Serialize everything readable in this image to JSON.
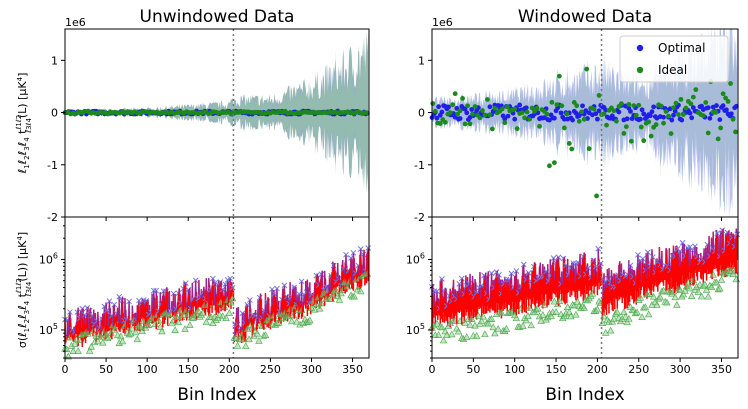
{
  "figure": {
    "xlabel": "Bin Index",
    "ylabel_top": "ℓ₁ℓ₂ℓ₃ℓ₄ t^{ℓ₁ℓ₂}_{ℓ₃ℓ₄}(L) [μK⁴]",
    "ylabel_bottom": "σ(ℓ₁ℓ₂ℓ₃ℓ₄ t^{ℓ₁ℓ₂}_{ℓ₃ℓ₄}(L)) [μK⁴]",
    "ylabel_top_parts": {
      "pre": "ℓ",
      "s1": "1",
      "b": "ℓ",
      "s2": "2",
      "c": "ℓ",
      "s3": "3",
      "d": "ℓ",
      "s4": "4",
      "t": " t",
      "sup": "ℓ1ℓ2",
      "sub": "ℓ3ℓ4",
      "post": "(L) [μK",
      "p4": "4",
      "end": "]"
    },
    "ylabel_bottom_parts": {
      "pre": "σ(ℓ",
      "s1": "1",
      "b": "ℓ",
      "s2": "2",
      "c": "ℓ",
      "s3": "3",
      "d": "ℓ",
      "s4": "4",
      "t": " t",
      "sup": "ℓ1ℓ2",
      "sub": "ℓ3ℓ4",
      "post": "(L)) [μK",
      "p4": "4",
      "end": "]"
    },
    "sci_offset": "1e6",
    "divider_bin": 205
  },
  "colors": {
    "optimal": "#1f1fe8",
    "ideal": "#1a8a1a",
    "std_optimal": "#7b2fbe",
    "std_red": "#ff0000",
    "band_blue": "#8a96e6",
    "band_green": "#8fd18f",
    "band_steel": "#6b8fa8"
  },
  "legend": [
    {
      "label": "Optimal",
      "color": "#1f1fe8"
    },
    {
      "label": "Ideal",
      "color": "#1a8a1a"
    }
  ],
  "chart_data": [
    {
      "type": "scatter",
      "title": "Unwindowed Data",
      "panel": "top-left",
      "xlim": [
        0,
        370
      ],
      "ylim": [
        -2,
        1.6
      ],
      "y_unit": "1e6",
      "x_ticks": [
        0,
        50,
        100,
        150,
        200,
        250,
        300,
        350
      ],
      "y_ticks": [
        -2,
        -1,
        0,
        1
      ],
      "series": [
        {
          "name": "Optimal",
          "values": "≈0 across all bins"
        },
        {
          "name": "Ideal",
          "values": "≈0 across all bins"
        }
      ],
      "band_amplitude_by_bin": [
        [
          0,
          0.05
        ],
        [
          100,
          0.08
        ],
        [
          200,
          0.2
        ],
        [
          205,
          0.3
        ],
        [
          250,
          0.3
        ],
        [
          300,
          0.6
        ],
        [
          330,
          0.9
        ],
        [
          370,
          1.4
        ]
      ]
    },
    {
      "type": "scatter",
      "title": "Windowed Data",
      "panel": "top-right",
      "xlim": [
        0,
        370
      ],
      "ylim": [
        -2,
        1.6
      ],
      "y_unit": "1e6",
      "x_ticks": [
        0,
        50,
        100,
        150,
        200,
        250,
        300,
        350
      ],
      "y_ticks": [
        -2,
        -1,
        0,
        1
      ],
      "series": [
        {
          "name": "Optimal",
          "values": "scatter ≈ ±0.15 around 0"
        },
        {
          "name": "Ideal",
          "values": "scatter up to ±1.9 around 0, largest near bins 150–205"
        }
      ],
      "band_amplitude_by_bin": [
        [
          0,
          0.25
        ],
        [
          100,
          0.4
        ],
        [
          205,
          0.9
        ],
        [
          250,
          0.6
        ],
        [
          370,
          1.9
        ]
      ]
    },
    {
      "type": "scatter",
      "panel": "bottom-left",
      "xlim": [
        0,
        370
      ],
      "ylim": [
        40000,
        4000000
      ],
      "yscale": "log",
      "y_ticks": [
        "10^5",
        "10^6"
      ],
      "x_ticks": [
        0,
        50,
        100,
        150,
        200,
        250,
        300,
        350
      ],
      "trend_by_bin": [
        [
          0,
          90000
        ],
        [
          100,
          180000
        ],
        [
          200,
          320000
        ],
        [
          205,
          450000
        ],
        [
          206,
          100000
        ],
        [
          300,
          300000
        ],
        [
          370,
          800000
        ]
      ]
    },
    {
      "type": "scatter",
      "panel": "bottom-right",
      "xlim": [
        0,
        370
      ],
      "ylim": [
        40000,
        4000000
      ],
      "yscale": "log",
      "y_ticks": [
        "10^5",
        "10^6"
      ],
      "x_ticks": [
        0,
        50,
        100,
        150,
        200,
        250,
        300,
        350
      ],
      "trend_by_bin": [
        [
          0,
          250000
        ],
        [
          100,
          400000
        ],
        [
          200,
          700000
        ],
        [
          205,
          800000
        ],
        [
          206,
          350000
        ],
        [
          300,
          900000
        ],
        [
          370,
          1600000
        ]
      ]
    }
  ]
}
